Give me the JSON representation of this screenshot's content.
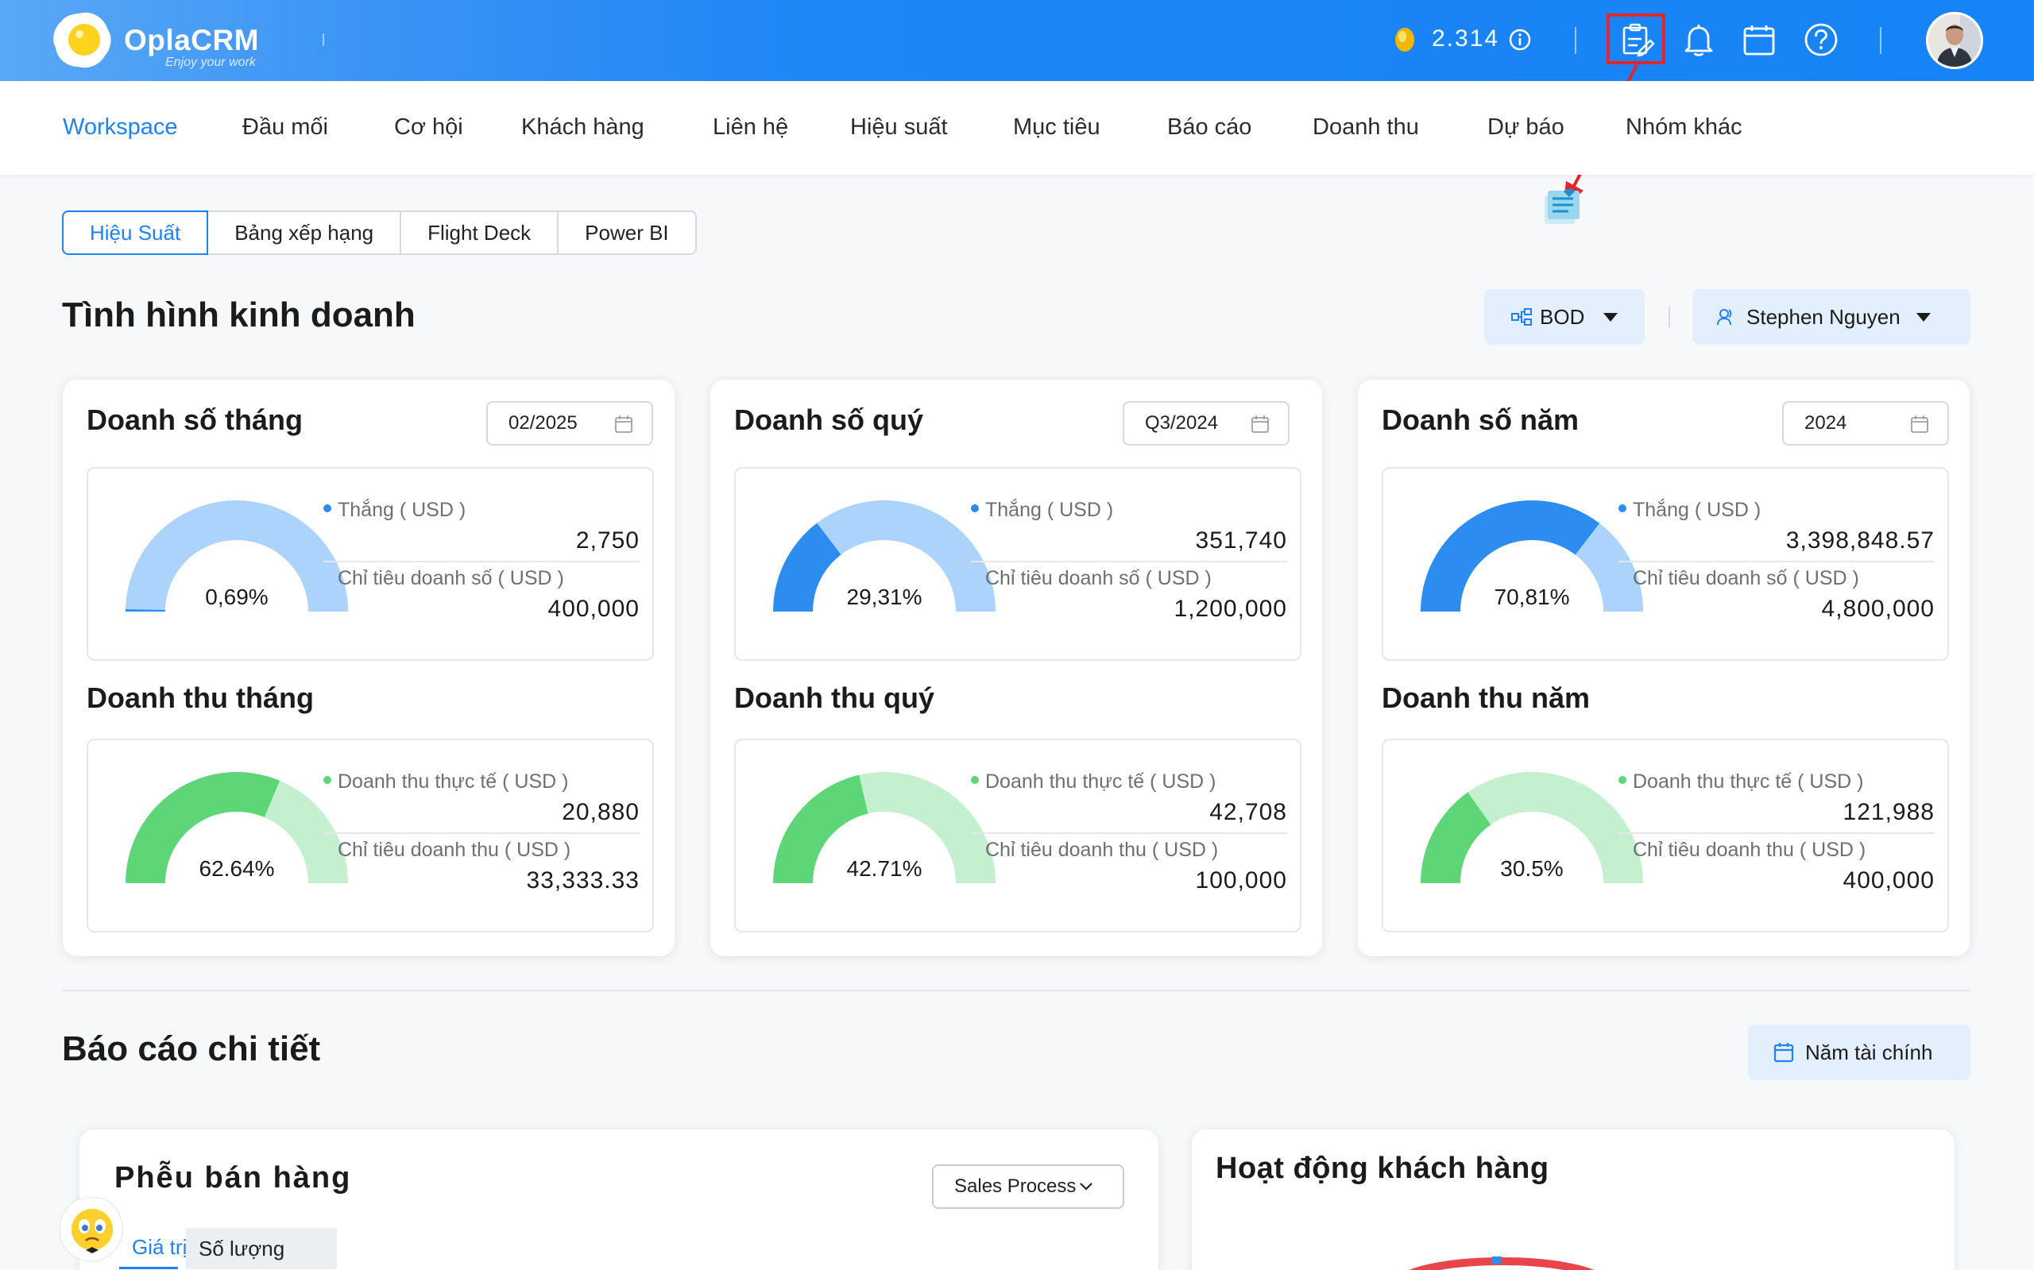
{
  "brand": {
    "name": "OplaCRM",
    "tagline": "Enjoy your work"
  },
  "header": {
    "coins": "2.314",
    "icons": [
      "info-icon",
      "clipboard-icon",
      "bell-icon",
      "calendar-icon",
      "help-icon",
      "avatar"
    ]
  },
  "nav": [
    "Workspace",
    "Đầu mối",
    "Cơ hội",
    "Khách hàng",
    "Liên hệ",
    "Hiệu suất",
    "Mục tiêu",
    "Báo cáo",
    "Doanh thu",
    "Dự báo",
    "Nhóm khác"
  ],
  "subtabs": [
    "Hiệu Suất",
    "Bảng xếp hạng",
    "Flight Deck",
    "Power BI"
  ],
  "business": {
    "title": "Tình hình kinh doanh",
    "group_filter": "BOD",
    "user_filter": "Stephen Nguyen"
  },
  "cards": [
    {
      "sales_title": "Doanh số tháng",
      "period": "02/2025",
      "sales": {
        "percent": "0,69%",
        "ratio": 0.0069,
        "won_label": "Thắng ( USD )",
        "won": "2,750",
        "target_label": "Chỉ tiêu doanh số ( USD )",
        "target": "400,000"
      },
      "revenue_title": "Doanh thu tháng",
      "revenue": {
        "percent": "62.64%",
        "ratio": 0.6264,
        "actual_label": "Doanh thu thực tế ( USD )",
        "actual": "20,880",
        "target_label": "Chỉ tiêu doanh thu ( USD )",
        "target": "33,333.33"
      }
    },
    {
      "sales_title": "Doanh số quý",
      "period": "Q3/2024",
      "sales": {
        "percent": "29,31%",
        "ratio": 0.2931,
        "won_label": "Thắng ( USD )",
        "won": "351,740",
        "target_label": "Chỉ tiêu doanh số ( USD )",
        "target": "1,200,000"
      },
      "revenue_title": "Doanh thu quý",
      "revenue": {
        "percent": "42.71%",
        "ratio": 0.4271,
        "actual_label": "Doanh thu thực tế ( USD )",
        "actual": "42,708",
        "target_label": "Chỉ tiêu doanh thu ( USD )",
        "target": "100,000"
      }
    },
    {
      "sales_title": "Doanh số năm",
      "period": "2024",
      "sales": {
        "percent": "70,81%",
        "ratio": 0.7081,
        "won_label": "Thắng ( USD )",
        "won": "3,398,848.57",
        "target_label": "Chỉ tiêu doanh số ( USD )",
        "target": "4,800,000"
      },
      "revenue_title": "Doanh thu năm",
      "revenue": {
        "percent": "30.5%",
        "ratio": 0.305,
        "actual_label": "Doanh thu thực tế ( USD )",
        "actual": "121,988",
        "target_label": "Chỉ tiêu doanh thu ( USD )",
        "target": "400,000"
      }
    }
  ],
  "details": {
    "title": "Báo cáo chi tiết",
    "fiscal_button": "Năm tài chính",
    "funnel": {
      "title": "Phễu bán hàng",
      "select": "Sales Process",
      "tab_value": "Giá trị",
      "tab_count": "Số lượng"
    },
    "activity": {
      "title": "Hoạt động khách hàng"
    }
  },
  "colors": {
    "header_blue": "#1683f6",
    "accent": "#1f82f3",
    "gauge_sales_fill": "#2d8cf0",
    "gauge_sales_track": "#abd3fb",
    "gauge_rev_fill": "#5ed677",
    "gauge_rev_track": "#c5f0cf",
    "highlight_red": "#e4252b"
  }
}
